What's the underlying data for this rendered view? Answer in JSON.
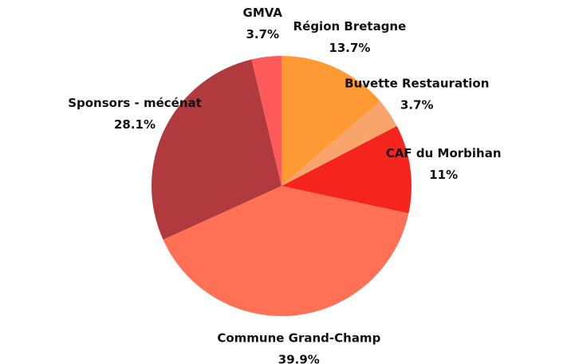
{
  "chart_data": {
    "type": "pie",
    "categories": [
      "Région Bretagne",
      "Buvette Restauration",
      "CAF du Morbihan",
      "Commune Grand-Champ",
      "Sponsors - mécénat",
      "GMVA"
    ],
    "values": [
      13.7,
      3.7,
      11,
      39.9,
      28.1,
      3.7
    ],
    "value_labels": [
      "13.7%",
      "3.7%",
      "11%",
      "39.9%",
      "28.1%",
      "3.7%"
    ],
    "colors": [
      "#ff9933",
      "#f8a46a",
      "#f5251e",
      "#ff7055",
      "#b03a3e",
      "#ff5a5a"
    ]
  }
}
